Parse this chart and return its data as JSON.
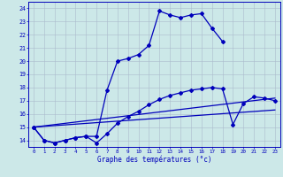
{
  "background_color": "#cce8e8",
  "plot_bg_color": "#cce8e8",
  "grid_color": "#aabbcc",
  "line_color": "#0000bb",
  "title": "Graphe des températures (°c)",
  "xlim": [
    -0.5,
    23.5
  ],
  "ylim": [
    13.5,
    24.5
  ],
  "yticks": [
    14,
    15,
    16,
    17,
    18,
    19,
    20,
    21,
    22,
    23,
    24
  ],
  "xticks": [
    0,
    1,
    2,
    3,
    4,
    5,
    6,
    7,
    8,
    9,
    10,
    11,
    12,
    13,
    14,
    15,
    16,
    17,
    18,
    19,
    20,
    21,
    22,
    23
  ],
  "series": [
    {
      "x": [
        0,
        1,
        2,
        3,
        4,
        5,
        6,
        7,
        8,
        9,
        10,
        11,
        12,
        13,
        14,
        15,
        16,
        17,
        18
      ],
      "y": [
        15.0,
        14.0,
        13.8,
        14.0,
        14.2,
        14.3,
        14.3,
        17.8,
        20.0,
        20.2,
        20.5,
        21.2,
        23.8,
        23.5,
        23.3,
        23.5,
        23.6,
        22.5,
        21.5
      ],
      "marker": "D",
      "markersize": 2.0,
      "linewidth": 0.9
    },
    {
      "x": [
        0,
        1,
        2,
        3,
        4,
        5,
        6,
        7,
        8,
        9,
        10,
        11,
        12,
        13,
        14,
        15,
        16,
        17,
        18,
        19,
        20,
        21,
        22,
        23
      ],
      "y": [
        15.0,
        14.0,
        13.8,
        14.0,
        14.2,
        14.3,
        13.8,
        14.5,
        15.3,
        15.8,
        16.2,
        16.7,
        17.1,
        17.4,
        17.6,
        17.8,
        17.9,
        18.0,
        17.9,
        15.2,
        16.8,
        17.3,
        17.2,
        17.0
      ],
      "marker": "D",
      "markersize": 2.0,
      "linewidth": 0.9
    },
    {
      "x": [
        0,
        23
      ],
      "y": [
        15.0,
        17.2
      ],
      "marker": null,
      "linewidth": 0.9
    },
    {
      "x": [
        0,
        23
      ],
      "y": [
        15.0,
        16.3
      ],
      "marker": null,
      "linewidth": 0.9
    }
  ]
}
